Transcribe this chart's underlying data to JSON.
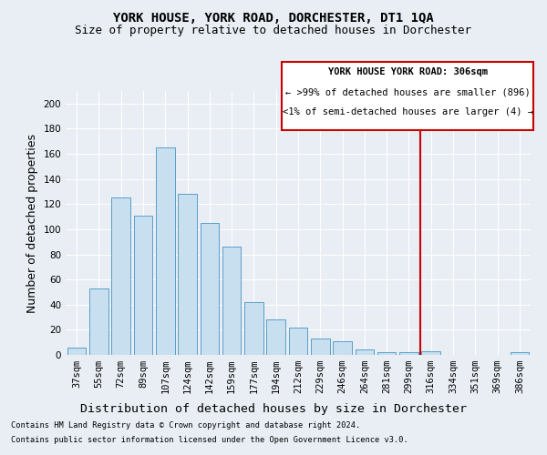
{
  "title": "YORK HOUSE, YORK ROAD, DORCHESTER, DT1 1QA",
  "subtitle": "Size of property relative to detached houses in Dorchester",
  "xlabel": "Distribution of detached houses by size in Dorchester",
  "ylabel": "Number of detached properties",
  "categories": [
    "37sqm",
    "55sqm",
    "72sqm",
    "89sqm",
    "107sqm",
    "124sqm",
    "142sqm",
    "159sqm",
    "177sqm",
    "194sqm",
    "212sqm",
    "229sqm",
    "246sqm",
    "264sqm",
    "281sqm",
    "299sqm",
    "316sqm",
    "334sqm",
    "351sqm",
    "369sqm",
    "386sqm"
  ],
  "values": [
    6,
    53,
    125,
    111,
    165,
    128,
    105,
    86,
    42,
    28,
    22,
    13,
    11,
    4,
    2,
    2,
    3,
    0,
    0,
    0,
    2
  ],
  "bar_color": "#c8dff0",
  "bar_edge_color": "#5a9ec8",
  "vline_x_index": 15.5,
  "vline_color": "#cc0000",
  "legend_text_line1": "YORK HOUSE YORK ROAD: 306sqm",
  "legend_text_line2": "← >99% of detached houses are smaller (896)",
  "legend_text_line3": "<1% of semi-detached houses are larger (4) →",
  "legend_box_color": "#cc0000",
  "ylim": [
    0,
    210
  ],
  "yticks": [
    0,
    20,
    40,
    60,
    80,
    100,
    120,
    140,
    160,
    180,
    200
  ],
  "footnote1": "Contains HM Land Registry data © Crown copyright and database right 2024.",
  "footnote2": "Contains public sector information licensed under the Open Government Licence v3.0.",
  "background_color": "#e8eef4",
  "grid_color": "#ffffff",
  "title_fontsize": 10,
  "subtitle_fontsize": 9,
  "axis_label_fontsize": 9,
  "tick_fontsize": 7.5
}
